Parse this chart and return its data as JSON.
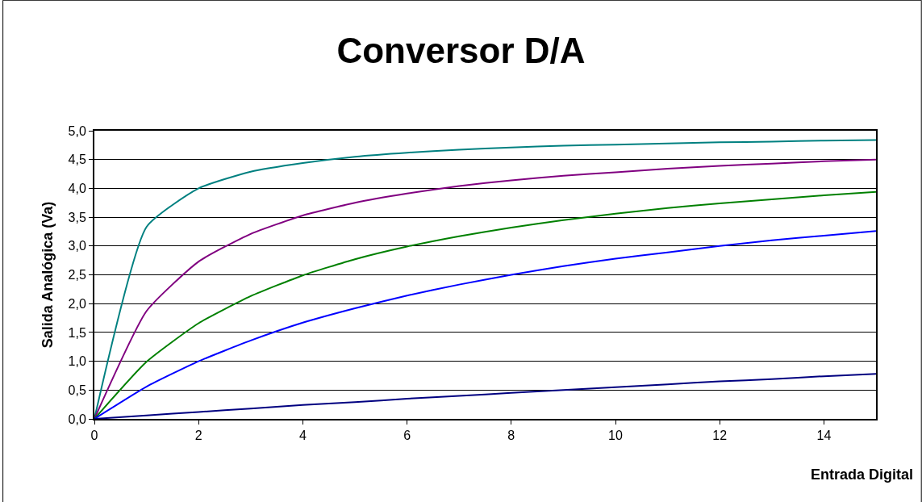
{
  "chart_data": {
    "type": "line",
    "title": "Conversor D/A",
    "xlabel": "Entrada Digital",
    "ylabel": "Salida Analógica (Va)",
    "x": [
      0,
      1,
      2,
      3,
      4,
      5,
      6,
      7,
      8,
      9,
      10,
      11,
      12,
      13,
      14,
      15
    ],
    "series": [
      {
        "color": "#008080",
        "values": [
          0,
          3.33,
          4.0,
          4.29,
          4.44,
          4.55,
          4.62,
          4.67,
          4.71,
          4.74,
          4.76,
          4.78,
          4.8,
          4.81,
          4.83,
          4.84
        ]
      },
      {
        "color": "#800080",
        "values": [
          0,
          1.87,
          2.73,
          3.21,
          3.53,
          3.75,
          3.91,
          4.04,
          4.14,
          4.22,
          4.28,
          4.34,
          4.39,
          4.43,
          4.47,
          4.5
        ]
      },
      {
        "color": "#008000",
        "values": [
          0,
          0.99,
          1.66,
          2.13,
          2.49,
          2.77,
          2.99,
          3.17,
          3.32,
          3.45,
          3.56,
          3.66,
          3.74,
          3.81,
          3.88,
          3.94
        ]
      },
      {
        "color": "#0000ff",
        "values": [
          0,
          0.56,
          1.0,
          1.36,
          1.67,
          1.92,
          2.14,
          2.33,
          2.5,
          2.65,
          2.78,
          2.89,
          3.0,
          3.1,
          3.18,
          3.26
        ]
      },
      {
        "color": "#000080",
        "values": [
          0,
          0.06,
          0.12,
          0.18,
          0.24,
          0.29,
          0.35,
          0.4,
          0.45,
          0.5,
          0.55,
          0.6,
          0.65,
          0.69,
          0.74,
          0.78
        ]
      }
    ],
    "xlim": [
      0,
      15
    ],
    "xticks": [
      0,
      2,
      4,
      6,
      8,
      10,
      12,
      14
    ],
    "ylim": [
      0,
      5
    ],
    "yticks": [
      {
        "value": 0,
        "label": "0,0"
      },
      {
        "value": 0.5,
        "label": "0,5"
      },
      {
        "value": 1,
        "label": "1,0"
      },
      {
        "value": 1.5,
        "label": "1,5"
      },
      {
        "value": 2,
        "label": "2,0"
      },
      {
        "value": 2.5,
        "label": "2,5"
      },
      {
        "value": 3,
        "label": "3,0"
      },
      {
        "value": 3.5,
        "label": "3,5"
      },
      {
        "value": 4,
        "label": "4,0"
      },
      {
        "value": 4.5,
        "label": "4,5"
      },
      {
        "value": 5,
        "label": "5,0"
      }
    ],
    "grid": "y",
    "marker": "none",
    "line_style": "solid"
  }
}
